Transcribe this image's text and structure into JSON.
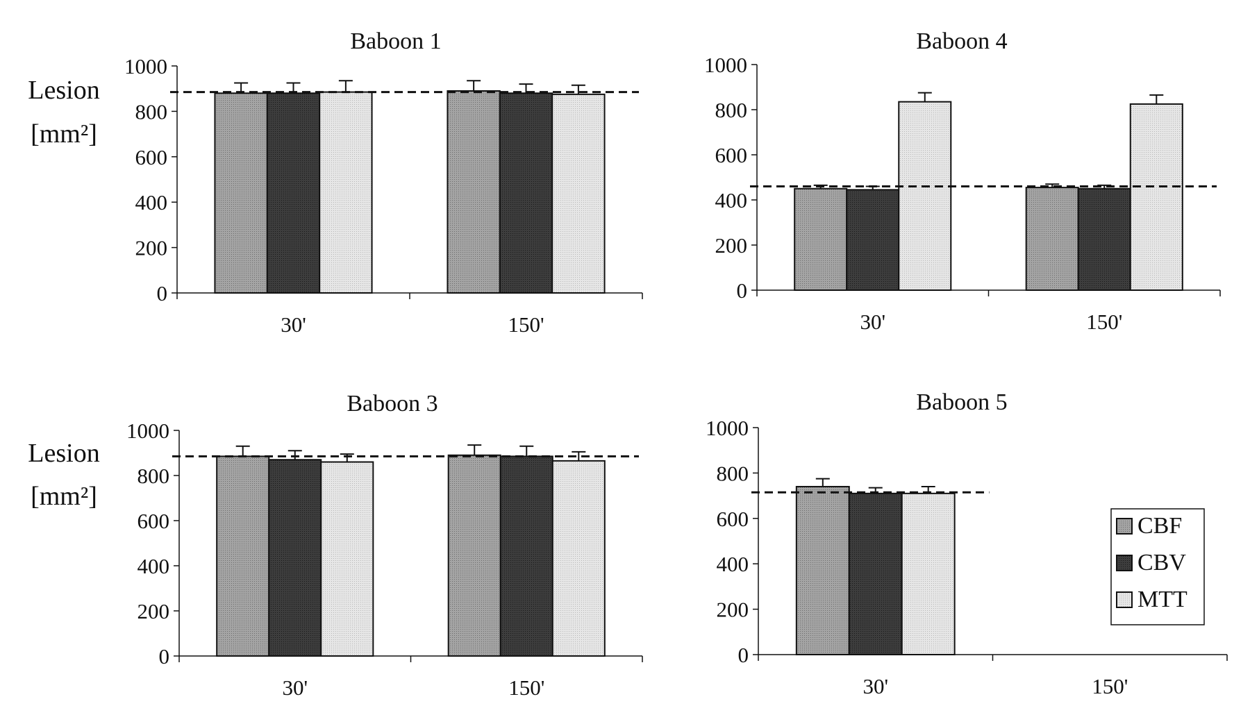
{
  "colors": {
    "CBF": "#9a9a9a",
    "CBV": "#3a3a3a",
    "MTT": "#e2e2e2",
    "outline": "#111111",
    "reference_line": "#111111"
  },
  "legend": [
    {
      "name": "CBF",
      "color_key": "CBF"
    },
    {
      "name": "CBV",
      "color_key": "CBV"
    },
    {
      "name": "MTT",
      "color_key": "MTT"
    }
  ],
  "chart_data": [
    {
      "type": "bar",
      "title": "Baboon 1",
      "ylabel_line1": "Lesion",
      "ylabel_line2": "[mm²]",
      "categories": [
        "30'",
        "150'"
      ],
      "yticks": [
        "0",
        "200",
        "400",
        "600",
        "800",
        "1000"
      ],
      "ylim": [
        0,
        1000
      ],
      "series": [
        {
          "name": "CBF",
          "values": [
            880,
            890
          ],
          "errors": [
            45,
            45
          ]
        },
        {
          "name": "CBV",
          "values": [
            880,
            880
          ],
          "errors": [
            45,
            40
          ]
        },
        {
          "name": "MTT",
          "values": [
            885,
            875
          ],
          "errors": [
            50,
            40
          ]
        }
      ],
      "reference_line": 885
    },
    {
      "type": "bar",
      "title": "Baboon 4",
      "ylabel_line1": "",
      "ylabel_line2": "",
      "categories": [
        "30'",
        "150'"
      ],
      "yticks": [
        "0",
        "200",
        "400",
        "600",
        "800",
        "1000"
      ],
      "ylim": [
        0,
        1000
      ],
      "series": [
        {
          "name": "CBF",
          "values": [
            450,
            455
          ],
          "errors": [
            15,
            15
          ]
        },
        {
          "name": "CBV",
          "values": [
            445,
            450
          ],
          "errors": [
            15,
            15
          ]
        },
        {
          "name": "MTT",
          "values": [
            835,
            825
          ],
          "errors": [
            40,
            40
          ]
        }
      ],
      "reference_line": 460
    },
    {
      "type": "bar",
      "title": "Baboon 3",
      "ylabel_line1": "Lesion",
      "ylabel_line2": "[mm²]",
      "categories": [
        "30'",
        "150'"
      ],
      "yticks": [
        "0",
        "200",
        "400",
        "600",
        "800",
        "1000"
      ],
      "ylim": [
        0,
        1000
      ],
      "series": [
        {
          "name": "CBF",
          "values": [
            885,
            890
          ],
          "errors": [
            45,
            45
          ]
        },
        {
          "name": "CBV",
          "values": [
            870,
            885
          ],
          "errors": [
            40,
            45
          ]
        },
        {
          "name": "MTT",
          "values": [
            860,
            865
          ],
          "errors": [
            35,
            40
          ]
        }
      ],
      "reference_line": 885
    },
    {
      "type": "bar",
      "title": "Baboon 5",
      "ylabel_line1": "",
      "ylabel_line2": "",
      "categories": [
        "30'",
        "150'"
      ],
      "yticks": [
        "0",
        "200",
        "400",
        "600",
        "800",
        "1000"
      ],
      "ylim": [
        0,
        1000
      ],
      "series": [
        {
          "name": "CBF",
          "values": [
            740,
            null
          ],
          "errors": [
            35,
            null
          ]
        },
        {
          "name": "CBV",
          "values": [
            710,
            null
          ],
          "errors": [
            25,
            null
          ]
        },
        {
          "name": "MTT",
          "values": [
            710,
            null
          ],
          "errors": [
            30,
            null
          ]
        }
      ],
      "reference_line": 715,
      "reference_line_extent": "30'"
    }
  ]
}
